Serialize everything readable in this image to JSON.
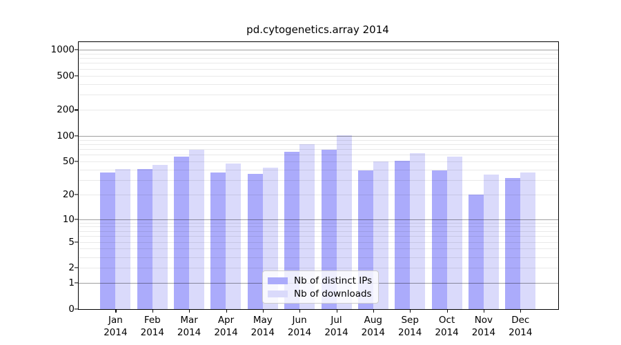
{
  "chart_data": {
    "type": "bar",
    "title": "pd.cytogenetics.array 2014",
    "categories": [
      "Jan 2014",
      "Feb 2014",
      "Mar 2014",
      "Apr 2014",
      "May 2014",
      "Jun 2014",
      "Jul 2014",
      "Aug 2014",
      "Sep 2014",
      "Oct 2014",
      "Nov 2014",
      "Dec 2014"
    ],
    "series": [
      {
        "name": "Nb of distinct IPs",
        "color": "#ababfb",
        "values": [
          37,
          41,
          57,
          37,
          36,
          65,
          69,
          39,
          51,
          39,
          20,
          32
        ]
      },
      {
        "name": "Nb of downloads",
        "color": "#dadafb",
        "values": [
          41,
          46,
          69,
          47,
          42,
          80,
          101,
          50,
          63,
          57,
          35,
          37
        ]
      }
    ],
    "xlabel": "",
    "ylabel": "",
    "y_scale": "log10(value+1)",
    "y_axis_ticks": [
      0,
      1,
      2,
      5,
      10,
      20,
      50,
      100,
      200,
      500,
      1000
    ],
    "y_major_gridlines": [
      1,
      10,
      100,
      1000
    ],
    "y_minor_gridlines": [
      2,
      3,
      4,
      5,
      6,
      7,
      8,
      9,
      20,
      30,
      40,
      50,
      60,
      70,
      80,
      90,
      200,
      300,
      400,
      500,
      600,
      700,
      800,
      900
    ],
    "ylim": [
      0,
      1230
    ],
    "grid": true,
    "legend_position": "lower-center-inside"
  }
}
